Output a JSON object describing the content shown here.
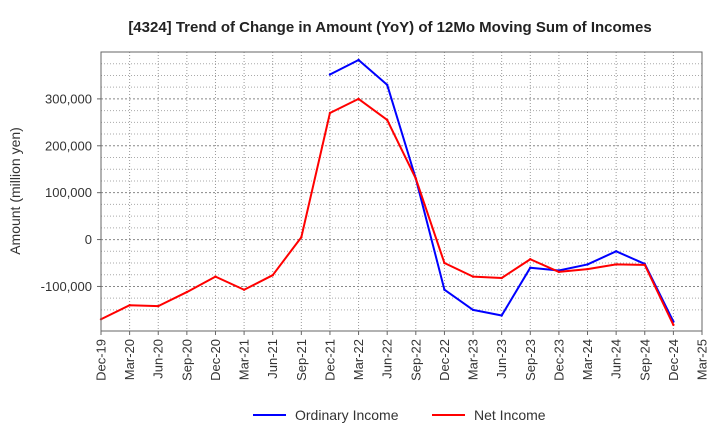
{
  "chart_data": {
    "type": "line",
    "title": "[4324]  Trend of Change in Amount (YoY) of 12Mo Moving Sum of Incomes",
    "xlabel": "",
    "ylabel": "Amount (million yen)",
    "categories": [
      "Dec-19",
      "Mar-20",
      "Jun-20",
      "Sep-20",
      "Dec-20",
      "Mar-21",
      "Jun-21",
      "Sep-21",
      "Dec-21",
      "Mar-22",
      "Jun-22",
      "Sep-22",
      "Dec-22",
      "Mar-23",
      "Jun-23",
      "Sep-23",
      "Dec-23",
      "Mar-24",
      "Jun-24",
      "Sep-24",
      "Dec-24",
      "Mar-25"
    ],
    "ylim": [
      -195000,
      400000
    ],
    "yticks": [
      -100000,
      0,
      100000,
      200000,
      300000
    ],
    "ytick_labels": [
      "-100,000",
      "0",
      "100,000",
      "200,000",
      "300,000"
    ],
    "grid": true,
    "legend_position": "bottom",
    "series": [
      {
        "name": "Ordinary Income",
        "color": "#0000ff",
        "values": [
          null,
          null,
          null,
          null,
          null,
          null,
          null,
          null,
          352000,
          383000,
          330000,
          130000,
          -107000,
          -150000,
          -162000,
          -60000,
          -66000,
          -53000,
          -25000,
          -52000,
          -175000,
          null
        ]
      },
      {
        "name": "Net Income",
        "color": "#ff0000",
        "values": [
          -170000,
          -140000,
          -142000,
          -112000,
          -79000,
          -107000,
          -76000,
          5000,
          270000,
          300000,
          255000,
          130000,
          -50000,
          -79000,
          -82000,
          -42000,
          -69000,
          -63000,
          -53000,
          -54000,
          -182000,
          null
        ]
      }
    ]
  }
}
